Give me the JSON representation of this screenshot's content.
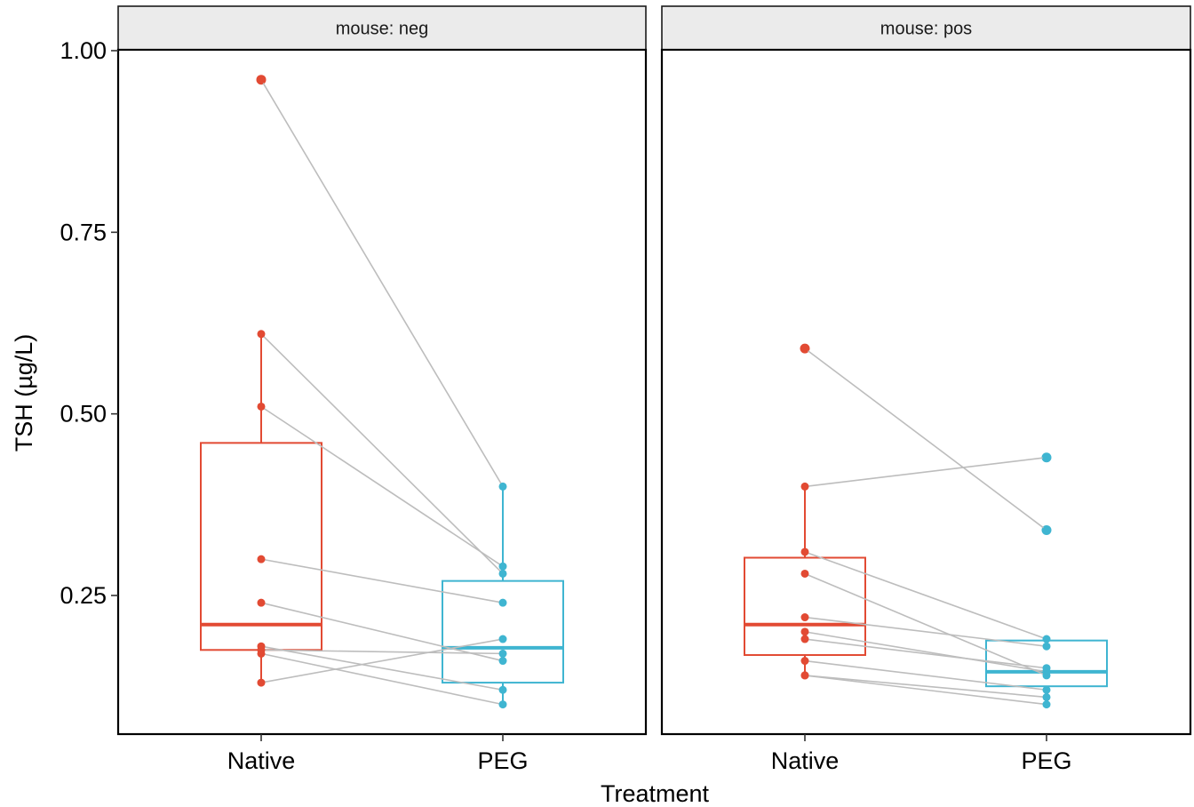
{
  "chart_data": {
    "type": "boxplot",
    "xlabel": "Treatment",
    "ylabel": "TSH (µg/L)",
    "ylim": [
      0.08,
      1.0
    ],
    "yticks": [
      "0.25",
      "0.50",
      "0.75",
      "1.00"
    ],
    "ytick_values": [
      0.25,
      0.5,
      0.75,
      1.0
    ],
    "categories": [
      "Native",
      "PEG"
    ],
    "grid": false,
    "legend": "none",
    "colors": {
      "Native": "#e24a33",
      "PEG": "#3fb5d1",
      "pair_line": "#bdbdbd"
    },
    "panels": [
      {
        "strip_label": "mouse: neg",
        "boxes": [
          {
            "category": "Native",
            "q1": 0.175,
            "median": 0.21,
            "q3": 0.46,
            "whisker_low": 0.13,
            "whisker_high": 0.61
          },
          {
            "category": "PEG",
            "q1": 0.13,
            "median": 0.178,
            "q3": 0.27,
            "whisker_low": 0.1,
            "whisker_high": 0.4
          }
        ],
        "pairs": [
          [
            0.96,
            0.4
          ],
          [
            0.61,
            0.28
          ],
          [
            0.51,
            0.29
          ],
          [
            0.3,
            0.24
          ],
          [
            0.24,
            0.16
          ],
          [
            0.18,
            0.12
          ],
          [
            0.175,
            0.17
          ],
          [
            0.17,
            0.1
          ],
          [
            0.13,
            0.19
          ]
        ],
        "outliers": {
          "Native": [
            0.96
          ],
          "PEG": []
        }
      },
      {
        "strip_label": "mouse: pos",
        "boxes": [
          {
            "category": "Native",
            "q1": 0.168,
            "median": 0.21,
            "q3": 0.302,
            "whisker_low": 0.14,
            "whisker_high": 0.4
          },
          {
            "category": "PEG",
            "q1": 0.125,
            "median": 0.145,
            "q3": 0.188,
            "whisker_low": 0.1,
            "whisker_high": 0.19
          }
        ],
        "pairs": [
          [
            0.59,
            0.34
          ],
          [
            0.4,
            0.44
          ],
          [
            0.31,
            0.19
          ],
          [
            0.28,
            0.14
          ],
          [
            0.22,
            0.18
          ],
          [
            0.2,
            0.145
          ],
          [
            0.19,
            0.15
          ],
          [
            0.16,
            0.12
          ],
          [
            0.14,
            0.11
          ],
          [
            0.14,
            0.1
          ]
        ],
        "outliers": {
          "Native": [
            0.59
          ],
          "PEG": [
            0.44,
            0.34
          ]
        }
      }
    ]
  }
}
